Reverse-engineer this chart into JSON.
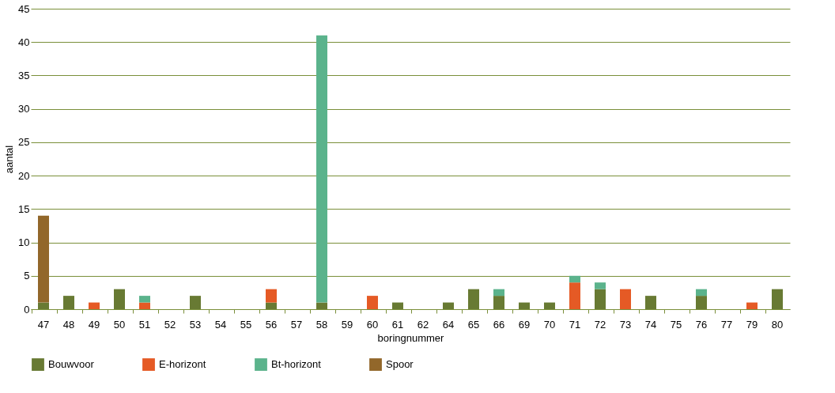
{
  "chart_data": {
    "type": "bar",
    "stacked": true,
    "xlabel": "boringnummer",
    "ylabel": "aantal",
    "categories": [
      "47",
      "48",
      "49",
      "50",
      "51",
      "52",
      "53",
      "54",
      "55",
      "56",
      "57",
      "58",
      "59",
      "60",
      "61",
      "62",
      "64",
      "65",
      "66",
      "69",
      "70",
      "71",
      "72",
      "73",
      "74",
      "75",
      "76",
      "77",
      "79",
      "80"
    ],
    "series": [
      {
        "name": "Bouwvoor",
        "color": "#687a33",
        "values": [
          1,
          2,
          0,
          3,
          0,
          0,
          2,
          0,
          0,
          1,
          0,
          1,
          0,
          0,
          1,
          0,
          1,
          3,
          2,
          1,
          1,
          0,
          3,
          0,
          2,
          0,
          2,
          0,
          0,
          3
        ]
      },
      {
        "name": "E-horizont",
        "color": "#e55a25",
        "values": [
          0,
          0,
          1,
          0,
          1,
          0,
          0,
          0,
          0,
          2,
          0,
          0,
          0,
          2,
          0,
          0,
          0,
          0,
          0,
          0,
          0,
          4,
          0,
          3,
          0,
          0,
          0,
          0,
          1,
          0
        ]
      },
      {
        "name": "Bt-horizont",
        "color": "#5bb38c",
        "values": [
          0,
          0,
          0,
          0,
          1,
          0,
          0,
          0,
          0,
          0,
          0,
          40,
          0,
          0,
          0,
          0,
          0,
          0,
          1,
          0,
          0,
          1,
          1,
          0,
          0,
          0,
          1,
          0,
          0,
          0
        ]
      },
      {
        "name": "Spoor",
        "color": "#92672a",
        "values": [
          13,
          0,
          0,
          0,
          0,
          0,
          0,
          0,
          0,
          0,
          0,
          0,
          0,
          0,
          0,
          0,
          0,
          0,
          0,
          0,
          0,
          0,
          0,
          0,
          0,
          0,
          0,
          0,
          0,
          0
        ]
      }
    ],
    "ylim": [
      0,
      45
    ],
    "yticks": [
      0,
      5,
      10,
      15,
      20,
      25,
      30,
      35,
      40,
      45
    ],
    "grid": "y",
    "legend": "bottom"
  }
}
